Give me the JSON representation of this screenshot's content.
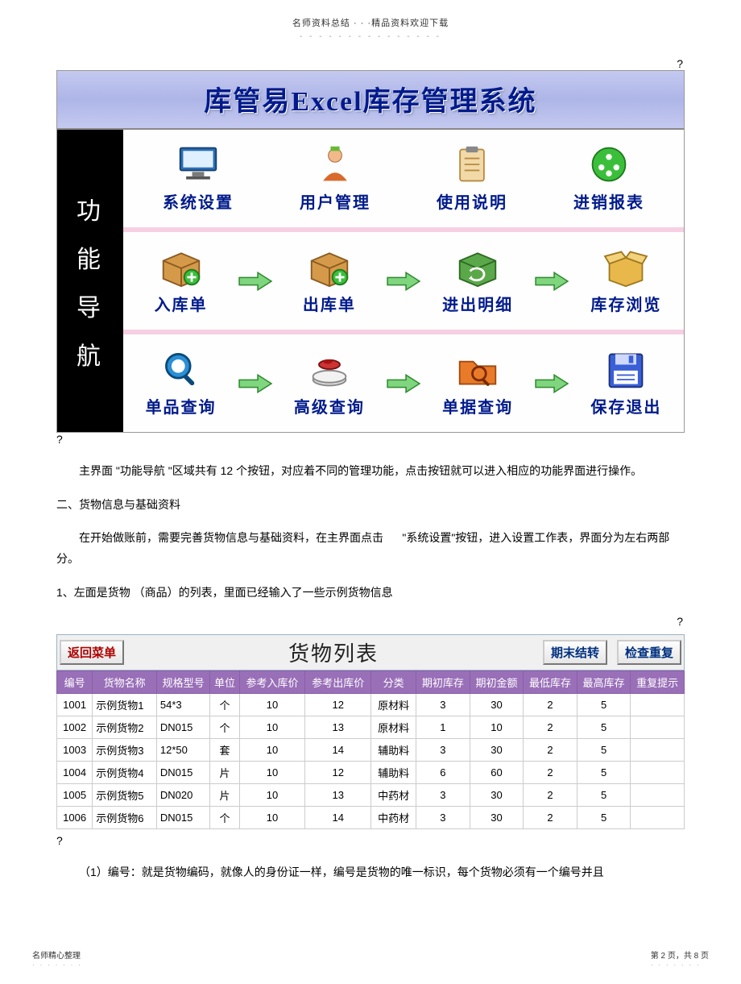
{
  "header": {
    "top_line": "名师资料总结 · · ·精品资料欢迎下载",
    "dashes": "- - - - - - - - - - - - - - -"
  },
  "banner_title": "库管易Excel库存管理系统",
  "sidebar": [
    "功",
    "能",
    "导",
    "航"
  ],
  "rows": [
    {
      "items": [
        "系统设置",
        "用户管理",
        "使用说明",
        "进销报表"
      ],
      "arrows": false
    },
    {
      "items": [
        "入库单",
        "出库单",
        "进出明细",
        "库存浏览"
      ],
      "arrows": true
    },
    {
      "items": [
        "单品查询",
        "高级查询",
        "单据查询",
        "保存退出"
      ],
      "arrows": true
    }
  ],
  "icons": {
    "系统设置": "screen",
    "用户管理": "user",
    "使用说明": "clipboard",
    "进销报表": "green-circle",
    "入库单": "box-plus",
    "出库单": "box-plus",
    "进出明细": "box-cycle",
    "库存浏览": "open-box",
    "单品查询": "magnify-blue",
    "高级查询": "scale",
    "单据查询": "folder-magnify",
    "保存退出": "floppy"
  },
  "paragraphs": {
    "p1": "主界面 \"功能导航 \"区域共有   12  个按钮，对应着不同的管理功能，点击按钮就可以进入相应的功能界面进行操作。",
    "h2": "二、货物信息与基础资料",
    "p2a": "在开始做账前，需要完善货物信息与基础资料，在主界面点击",
    "p2b": "\"系统设置\"按钮，进入设置工作表，界面分为左右两部分。",
    "h3": "1、左面是货物 （商品）的列表，里面已经输入了一些示例货物信息",
    "p3": "（1）编号：就是货物编码，就像人的身份证一样，编号是货物的唯一标识，每个货物必须有一个编号并且"
  },
  "goods_header": {
    "back": "返回菜单",
    "title": "货物列表",
    "carry": "期末结转",
    "check": "检查重复"
  },
  "goods_columns": [
    "编号",
    "货物名称",
    "规格型号",
    "单位",
    "参考入库价",
    "参考出库价",
    "分类",
    "期初库存",
    "期初金额",
    "最低库存",
    "最高库存",
    "重复提示"
  ],
  "goods_rows": [
    [
      "1001",
      "示例货物1",
      "54*3",
      "个",
      "10",
      "12",
      "原材料",
      "3",
      "30",
      "2",
      "5",
      ""
    ],
    [
      "1002",
      "示例货物2",
      "DN015",
      "个",
      "10",
      "13",
      "原材料",
      "1",
      "10",
      "2",
      "5",
      ""
    ],
    [
      "1003",
      "示例货物3",
      "12*50",
      "套",
      "10",
      "14",
      "辅助料",
      "3",
      "30",
      "2",
      "5",
      ""
    ],
    [
      "1004",
      "示例货物4",
      "DN015",
      "片",
      "10",
      "12",
      "辅助料",
      "6",
      "60",
      "2",
      "5",
      ""
    ],
    [
      "1005",
      "示例货物5",
      "DN020",
      "片",
      "10",
      "13",
      "中药材",
      "3",
      "30",
      "2",
      "5",
      ""
    ],
    [
      "1006",
      "示例货物6",
      "DN015",
      "个",
      "10",
      "14",
      "中药材",
      "3",
      "30",
      "2",
      "5",
      ""
    ]
  ],
  "footer": {
    "left": "名师精心整理",
    "right": "第 2 页，共 8 页",
    "dashes": "· · · · · · ·"
  },
  "colors": {
    "banner_text": "#001a8c",
    "th_bg": "#996fb8",
    "arrow_fill": "#7fd67f",
    "arrow_stroke": "#2e8b2e"
  },
  "qmark": "?"
}
